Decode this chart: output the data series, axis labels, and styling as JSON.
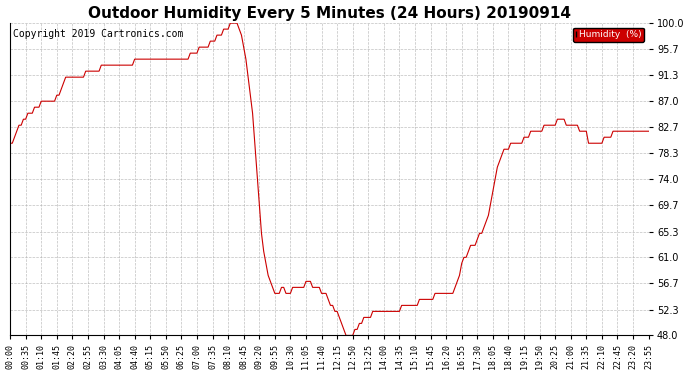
{
  "title": "Outdoor Humidity Every 5 Minutes (24 Hours) 20190914",
  "copyright_text": "Copyright 2019 Cartronics.com",
  "legend_label": "Humidity  (%)",
  "legend_bg": "#cc0000",
  "line_color": "#cc0000",
  "bg_color": "#ffffff",
  "plot_bg_color": "#ffffff",
  "grid_color": "#b0b0b0",
  "ylim": [
    48.0,
    100.0
  ],
  "yticks": [
    48.0,
    52.3,
    56.7,
    61.0,
    65.3,
    69.7,
    74.0,
    78.3,
    82.7,
    87.0,
    91.3,
    95.7,
    100.0
  ],
  "title_fontsize": 11,
  "copyright_fontsize": 7,
  "tick_fontsize": 6,
  "x_tick_step_minutes": 35,
  "humidity_values": [
    80,
    80,
    81,
    82,
    83,
    83,
    84,
    84,
    85,
    85,
    85,
    86,
    86,
    86,
    87,
    87,
    87,
    87,
    87,
    87,
    87,
    88,
    88,
    89,
    90,
    91,
    91,
    91,
    91,
    91,
    91,
    91,
    91,
    91,
    92,
    92,
    92,
    92,
    92,
    92,
    92,
    93,
    93,
    93,
    93,
    93,
    93,
    93,
    93,
    93,
    93,
    93,
    93,
    93,
    93,
    93,
    94,
    94,
    94,
    94,
    94,
    94,
    94,
    94,
    94,
    94,
    94,
    94,
    94,
    94,
    94,
    94,
    94,
    94,
    94,
    94,
    94,
    94,
    94,
    94,
    94,
    95,
    95,
    95,
    95,
    96,
    96,
    96,
    96,
    96,
    97,
    97,
    97,
    98,
    98,
    98,
    99,
    99,
    99,
    100,
    100,
    100,
    100,
    99,
    98,
    96,
    94,
    91,
    88,
    85,
    80,
    75,
    70,
    65,
    62,
    60,
    58,
    57,
    56,
    55,
    55,
    55,
    56,
    56,
    55,
    55,
    55,
    56,
    56,
    56,
    56,
    56,
    56,
    57,
    57,
    57,
    56,
    56,
    56,
    56,
    55,
    55,
    55,
    54,
    53,
    53,
    52,
    52,
    51,
    50,
    49,
    48,
    48,
    48,
    48,
    49,
    49,
    50,
    50,
    51,
    51,
    51,
    51,
    52,
    52,
    52,
    52,
    52,
    52,
    52,
    52,
    52,
    52,
    52,
    52,
    52,
    53,
    53,
    53,
    53,
    53,
    53,
    53,
    53,
    54,
    54,
    54,
    54,
    54,
    54,
    54,
    55,
    55,
    55,
    55,
    55,
    55,
    55,
    55,
    55,
    56,
    57,
    58,
    60,
    61,
    61,
    62,
    63,
    63,
    63,
    64,
    65,
    65,
    66,
    67,
    68,
    70,
    72,
    74,
    76,
    77,
    78,
    79,
    79,
    79,
    80,
    80,
    80,
    80,
    80,
    80,
    81,
    81,
    81,
    82,
    82,
    82,
    82,
    82,
    82,
    83,
    83,
    83,
    83,
    83,
    83,
    84,
    84,
    84,
    84,
    83,
    83,
    83,
    83,
    83,
    83,
    82,
    82,
    82,
    82,
    80,
    80,
    80,
    80,
    80,
    80,
    80,
    81,
    81,
    81,
    81,
    82,
    82,
    82,
    82,
    82,
    82,
    82,
    82,
    82,
    82,
    82,
    82,
    82,
    82,
    82,
    82,
    82
  ]
}
